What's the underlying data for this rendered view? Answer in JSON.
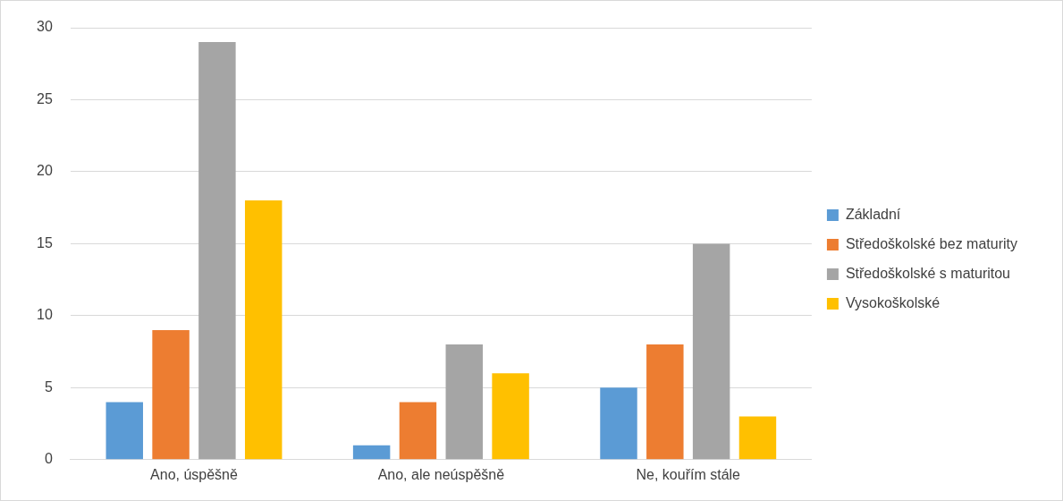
{
  "chart_data": {
    "type": "bar",
    "categories": [
      "Ano, úspěšně",
      "Ano, ale neúspěšně",
      "Ne, kouřím stále"
    ],
    "series": [
      {
        "name": "Základní",
        "color": "#5b9bd5",
        "values": [
          4,
          1,
          5
        ]
      },
      {
        "name": "Středoškolské bez maturity",
        "color": "#ed7d31",
        "values": [
          9,
          4,
          8
        ]
      },
      {
        "name": "Středoškolské s maturitou",
        "color": "#a5a5a5",
        "values": [
          29,
          8,
          15
        ]
      },
      {
        "name": "Vysokoškolské",
        "color": "#ffc000",
        "values": [
          18,
          6,
          3
        ]
      }
    ],
    "ylim": [
      0,
      30
    ],
    "yticks": [
      0,
      5,
      10,
      15,
      20,
      25,
      30
    ],
    "grid": "y",
    "legend": "right"
  }
}
